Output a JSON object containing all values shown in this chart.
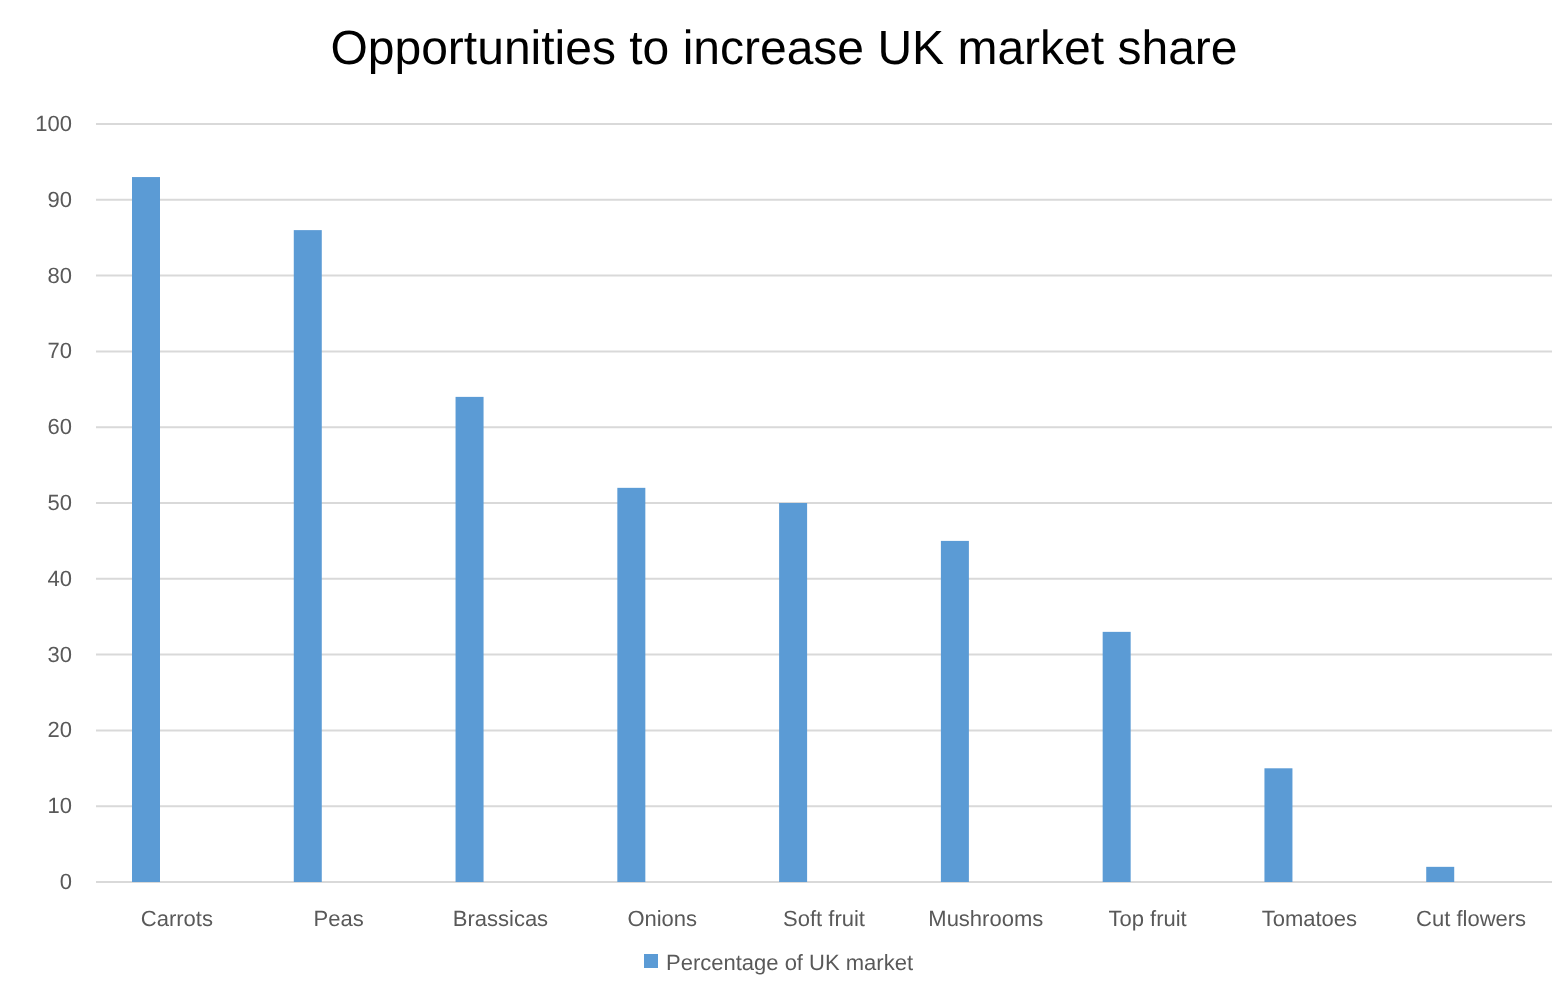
{
  "chart_data": {
    "type": "bar",
    "title": "Opportunities to increase UK market share",
    "categories": [
      "Carrots",
      "Peas",
      "Brassicas",
      "Onions",
      "Soft fruit",
      "Mushrooms",
      "Top fruit",
      "Tomatoes",
      "Cut flowers"
    ],
    "series": [
      {
        "name": "Percentage of UK market",
        "color": "#5b9bd5",
        "values": [
          93,
          86,
          64,
          52,
          50,
          45,
          33,
          15,
          2
        ]
      }
    ],
    "ylim": [
      0,
      100
    ],
    "yticks": [
      0,
      10,
      20,
      30,
      40,
      50,
      60,
      70,
      80,
      90,
      100
    ],
    "grid": "y",
    "legend": "bottom"
  }
}
